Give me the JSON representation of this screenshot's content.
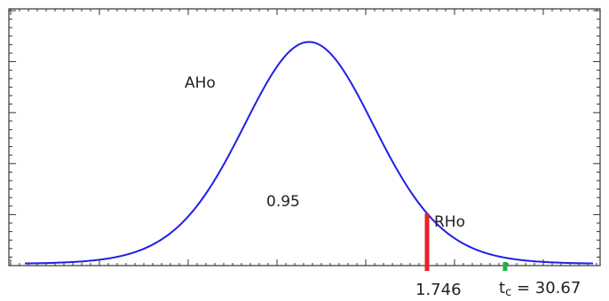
{
  "chart_data": {
    "type": "line",
    "title": "",
    "xlabel": "",
    "ylabel": "",
    "grid": false,
    "series": [
      {
        "color": "#1f1fe6",
        "curve": "t-distribution density",
        "df": 16
      }
    ],
    "xlim": [
      -4.2,
      4.2
    ],
    "ylim": [
      0,
      0.42
    ],
    "markers": [
      {
        "x": 1.746,
        "label": "1.746",
        "color": "#e8202a"
      },
      {
        "x": 2.9,
        "label_prefix": "t",
        "label_sub": "c",
        "label_rest": " = 30.67",
        "color": "#22b14c"
      }
    ],
    "annotations": [
      {
        "text": "AHo"
      },
      {
        "text": "0.95"
      },
      {
        "text": "RHo"
      }
    ]
  }
}
